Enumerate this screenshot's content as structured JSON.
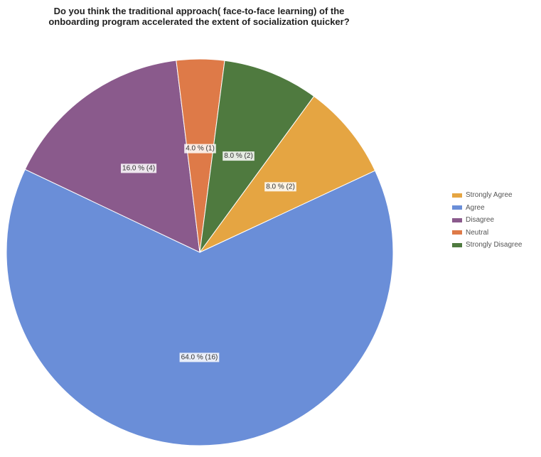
{
  "chart_data": {
    "type": "pie",
    "title_lines": [
      "Do you think the traditional approach( face-to-face learning) of the",
      "onboarding program accelerated the extent of socialization quicker?"
    ],
    "slices": [
      {
        "name": "Agree",
        "value": 16,
        "percent": 64.0,
        "label": "64.0 % (16)",
        "color": "#6a8ed8"
      },
      {
        "name": "Disagree",
        "value": 4,
        "percent": 16.0,
        "label": "16.0 % (4)",
        "color": "#8a5a8c"
      },
      {
        "name": "Neutral",
        "value": 1,
        "percent": 4.0,
        "label": "4.0 % (1)",
        "color": "#de7a48"
      },
      {
        "name": "Strongly Disagree",
        "value": 2,
        "percent": 8.0,
        "label": "8.0 % (2)",
        "color": "#4f7a3f"
      },
      {
        "name": "Strongly Agree",
        "value": 2,
        "percent": 8.0,
        "label": "8.0 % (2)",
        "color": "#e5a542"
      }
    ],
    "legend": {
      "placement": "right",
      "items": [
        {
          "label": "Strongly Agree",
          "color": "#e5a542"
        },
        {
          "label": "Agree",
          "color": "#6a8ed8"
        },
        {
          "label": "Disagree",
          "color": "#8a5a8c"
        },
        {
          "label": "Neutral",
          "color": "#de7a48"
        },
        {
          "label": "Strongly Disagree",
          "color": "#4f7a3f"
        }
      ]
    }
  }
}
